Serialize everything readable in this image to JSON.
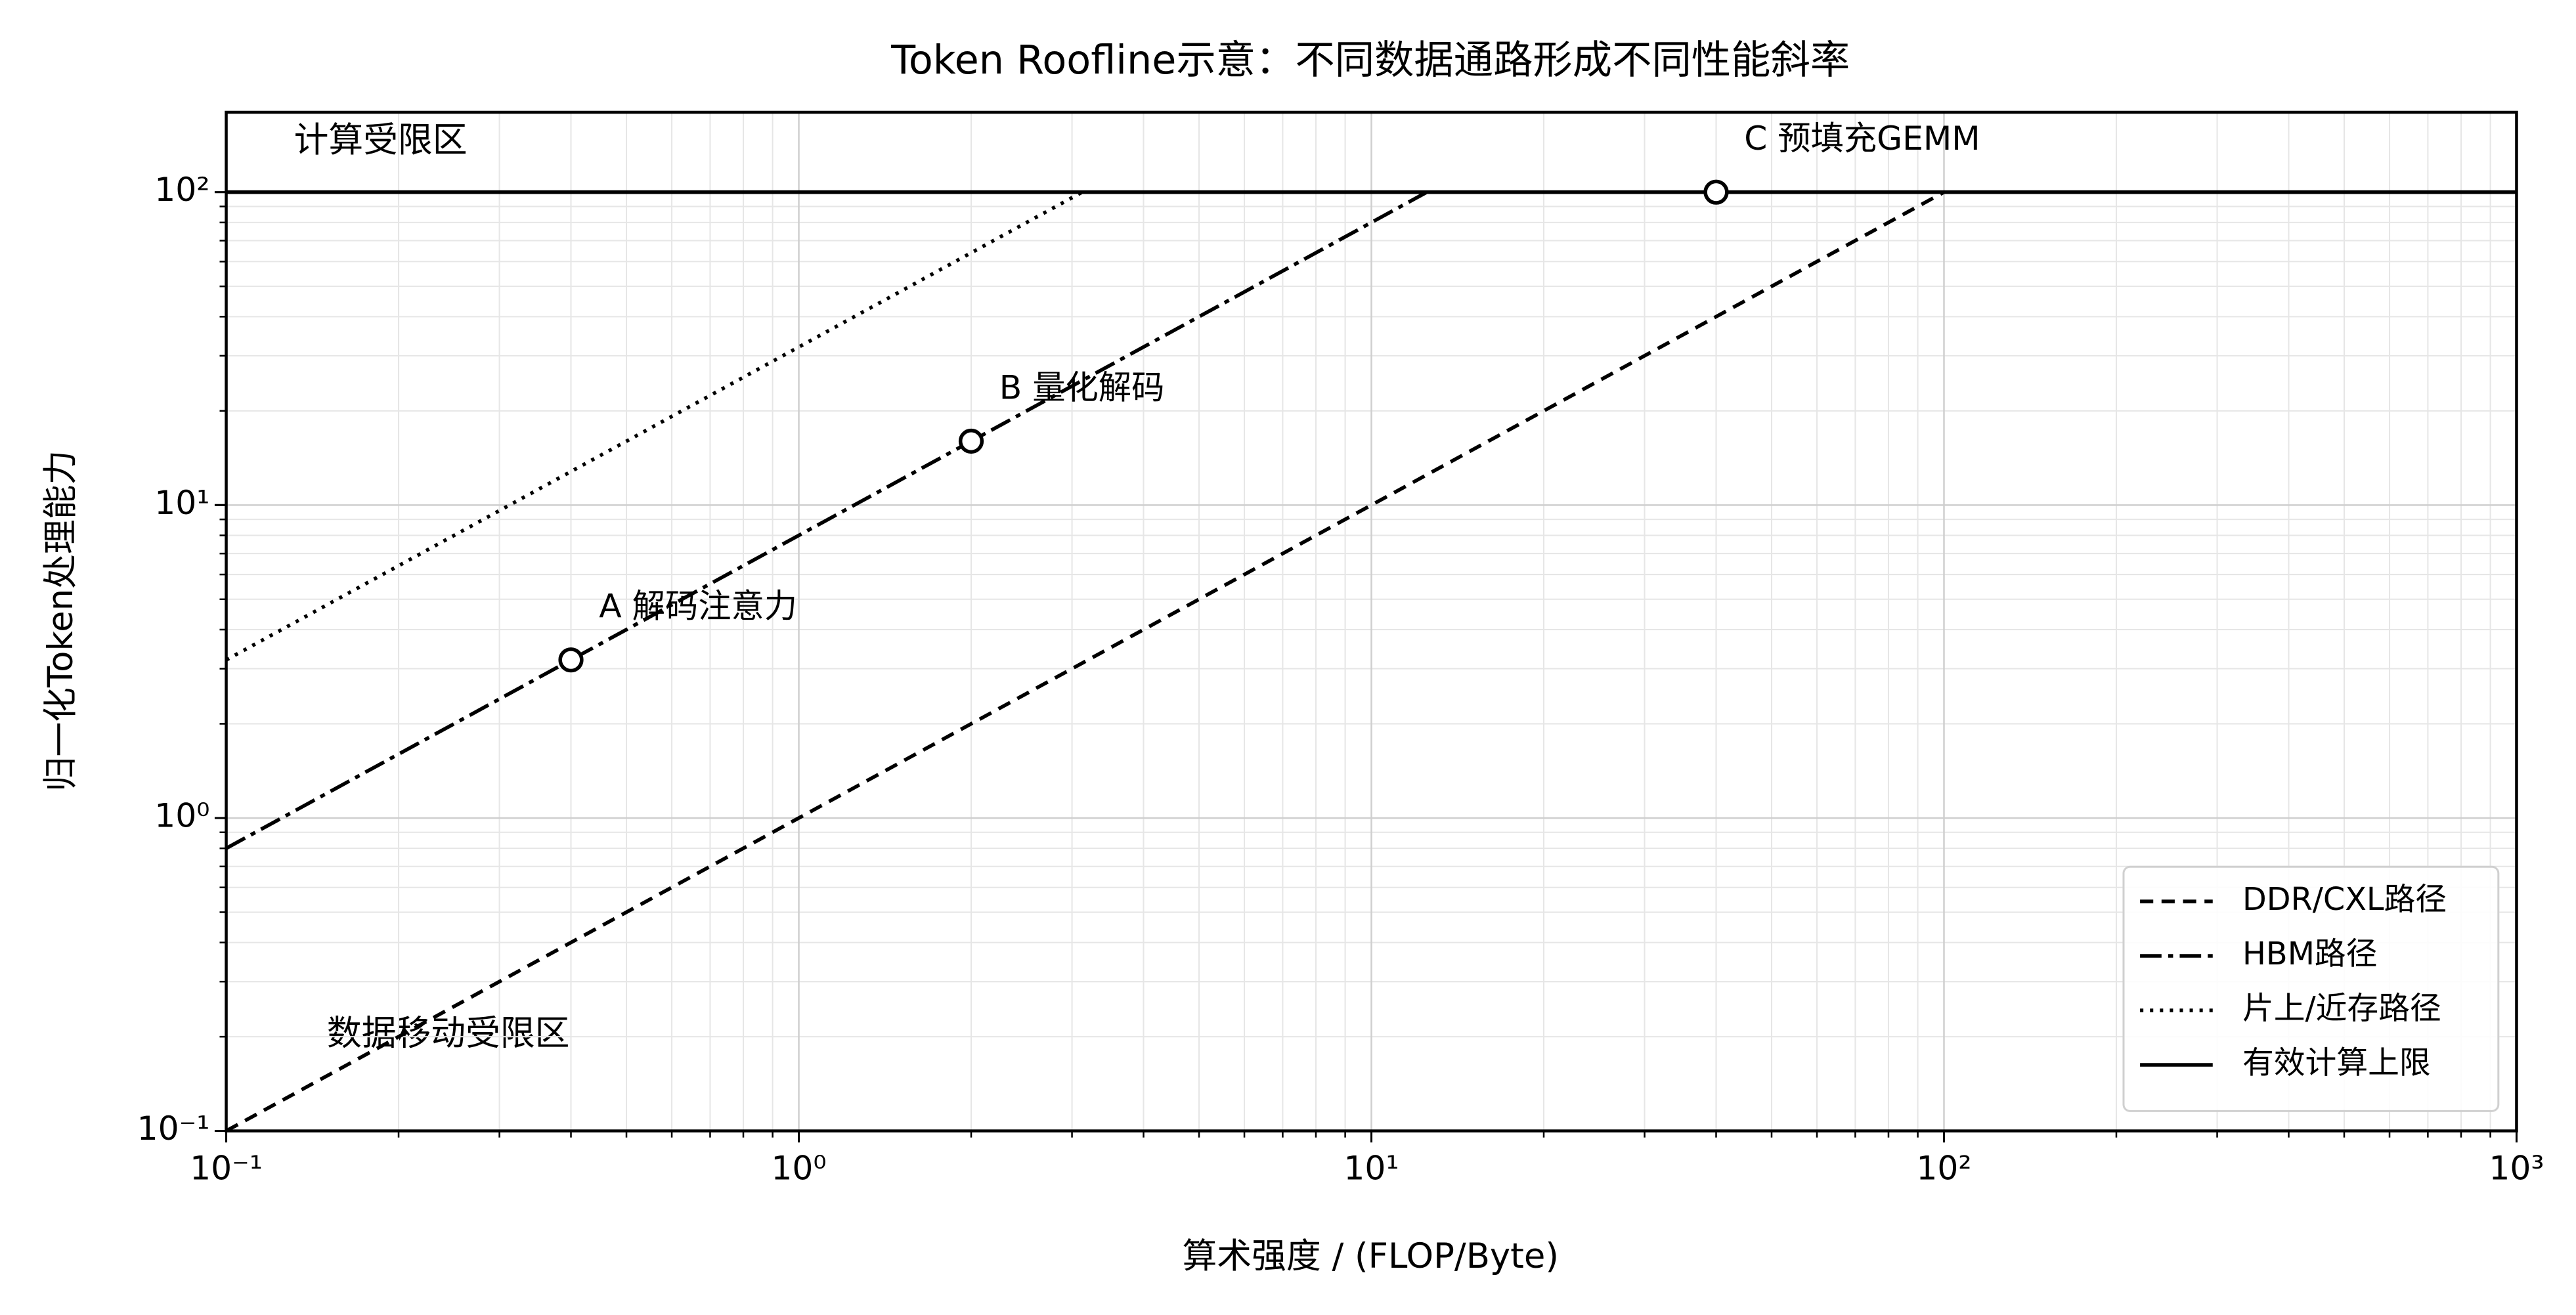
{
  "chart_data": {
    "type": "line",
    "title": "Token Roofline示意：不同数据通路形成不同性能斜率",
    "xlabel": "算术强度 / (FLOP/Byte)",
    "ylabel": "归一化Token处理能力",
    "xscale": "log",
    "yscale": "log",
    "xlim": [
      0.1,
      1000
    ],
    "ylim": [
      0.1,
      180
    ],
    "xticks": [
      {
        "value": 0.1,
        "label": "10⁻¹"
      },
      {
        "value": 1,
        "label": "10⁰"
      },
      {
        "value": 10,
        "label": "10¹"
      },
      {
        "value": 100,
        "label": "10²"
      },
      {
        "value": 1000,
        "label": "10³"
      }
    ],
    "yticks": [
      {
        "value": 0.1,
        "label": "10⁻¹"
      },
      {
        "value": 1,
        "label": "10⁰"
      },
      {
        "value": 10,
        "label": "10¹"
      },
      {
        "value": 100,
        "label": "10²"
      }
    ],
    "xminorticks": [
      0.2,
      0.3,
      0.4,
      0.5,
      0.6,
      0.7,
      0.8,
      0.9,
      2,
      3,
      4,
      5,
      6,
      7,
      8,
      9,
      20,
      30,
      40,
      50,
      60,
      70,
      80,
      90,
      200,
      300,
      400,
      500,
      600,
      700,
      800,
      900
    ],
    "yminorticks": [
      0.2,
      0.3,
      0.4,
      0.5,
      0.6,
      0.7,
      0.8,
      0.9,
      2,
      3,
      4,
      5,
      6,
      7,
      8,
      9,
      20,
      30,
      40,
      50,
      60,
      70,
      80,
      90
    ],
    "grid": true,
    "legend": "lower right",
    "series": [
      {
        "name": "DDR/CXL路径",
        "color": "#000000",
        "linestyle": "dashed",
        "x": [
          0.1,
          100
        ],
        "values": [
          0.1,
          100
        ]
      },
      {
        "name": "HBM路径",
        "color": "#000000",
        "linestyle": "dashdot",
        "x": [
          0.1,
          12.5
        ],
        "values": [
          0.8,
          100
        ]
      },
      {
        "name": "片上/近存路径",
        "color": "#000000",
        "linestyle": "dotted",
        "x": [
          0.1,
          3.125
        ],
        "values": [
          3.2,
          100
        ]
      },
      {
        "name": "有效计算上限",
        "color": "#000000",
        "linestyle": "solid",
        "x": [
          0.1,
          1000
        ],
        "values": [
          100,
          100
        ]
      }
    ],
    "points": {
      "x": [
        0.4,
        2,
        40
      ],
      "values": [
        3.2,
        16,
        100
      ],
      "labels": [
        "A 解码注意力",
        "B 量化解码",
        "C 预填充GEMM"
      ]
    },
    "annotations": [
      "计算受限区",
      "数据移动受限区"
    ]
  }
}
